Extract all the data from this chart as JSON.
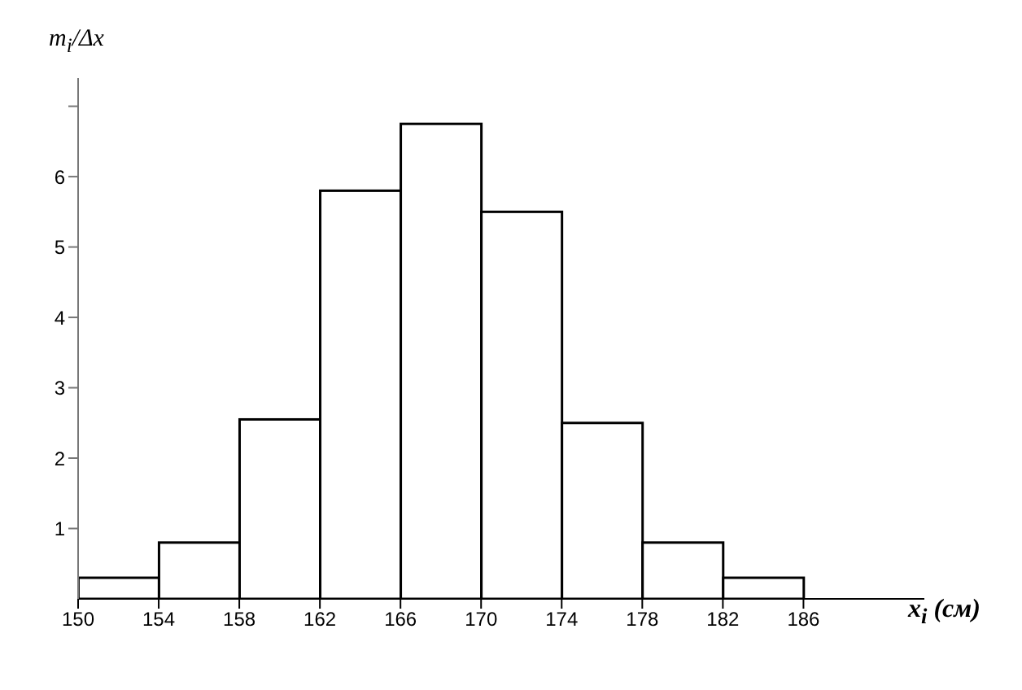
{
  "chart_data": {
    "type": "histogram",
    "ylabel": "m$_{i}$/Δx",
    "xlabel": "x$_{i}$ (см)",
    "bins": [
      150,
      154,
      158,
      162,
      166,
      170,
      174,
      178,
      182,
      186
    ],
    "values": [
      0.3,
      0.8,
      2.55,
      5.8,
      6.75,
      5.5,
      2.5,
      0.8,
      0.3
    ],
    "color": "#ffffff",
    "xlim": [
      150,
      192
    ],
    "xticks": [
      150,
      154,
      158,
      162,
      166,
      170,
      174,
      178,
      182,
      186
    ],
    "ylim": [
      0,
      7.4
    ],
    "yticks": [
      1,
      2,
      3,
      4,
      5,
      6,
      {
        "value": 7,
        "label": null
      }
    ],
    "grid": false,
    "legend": false
  }
}
